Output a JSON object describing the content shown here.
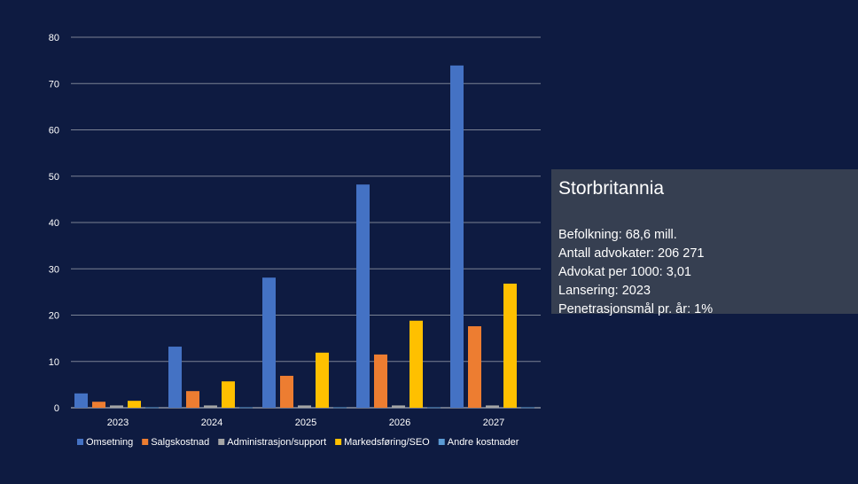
{
  "chart_data": {
    "type": "bar",
    "categories": [
      "2023",
      "2024",
      "2025",
      "2026",
      "2027"
    ],
    "series": [
      {
        "name": "Omsetning",
        "color": "#4472c4",
        "values": [
          3.1,
          13.2,
          28.1,
          48.2,
          73.9
        ]
      },
      {
        "name": "Salgskostnad",
        "color": "#ed7d31",
        "values": [
          1.3,
          3.6,
          6.9,
          11.5,
          17.6
        ]
      },
      {
        "name": "Administrasjon/support",
        "color": "#a5a5a5",
        "values": [
          0.5,
          0.5,
          0.5,
          0.5,
          0.5
        ]
      },
      {
        "name": "Markedsføring/SEO",
        "color": "#ffc000",
        "values": [
          1.5,
          5.7,
          11.9,
          18.8,
          26.8
        ]
      },
      {
        "name": "Andre kostnader",
        "color": "#5b9bd5",
        "values": [
          0.1,
          0.1,
          0.1,
          0.1,
          0.1
        ]
      }
    ],
    "ylim": [
      0,
      80
    ],
    "yticks": [
      0,
      10,
      20,
      30,
      40,
      50,
      60,
      70,
      80
    ],
    "grid": true,
    "legend": "bottom"
  },
  "panel": {
    "title": "Storbritannia",
    "lines": [
      "Befolkning: 68,6 mill.",
      "Antall advokater: 206 271",
      "Advokat per 1000: 3,01",
      "Lansering: 2023",
      "Penetrasjonsmål pr. år: 1%"
    ]
  }
}
